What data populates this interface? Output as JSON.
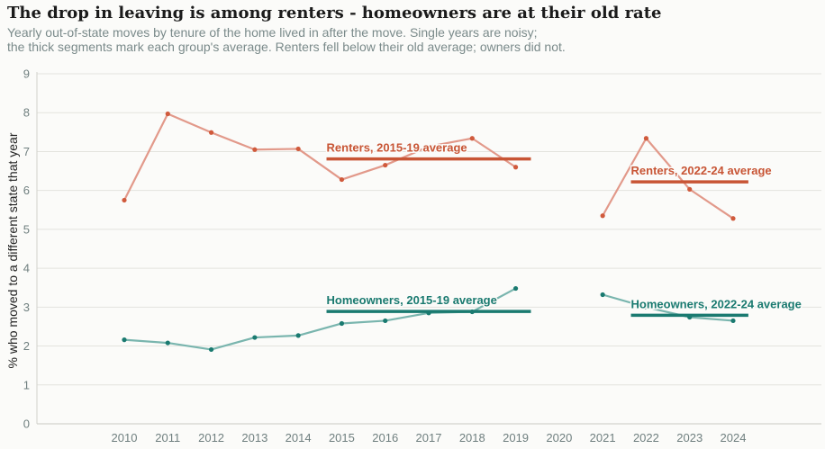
{
  "chart_data": {
    "type": "line",
    "title": "The drop in leaving is among renters - homeowners are at their old rate",
    "subtitle_lines": [
      "Yearly out-of-state moves by tenure of the home lived in after the move. Single years are noisy;",
      "the thick segments mark each group's average. Renters fell below their old average; owners did not."
    ],
    "xlabel": "",
    "ylabel": "% who moved to a different state that year",
    "x": [
      2010,
      2011,
      2012,
      2013,
      2014,
      2015,
      2016,
      2017,
      2018,
      2019,
      2020,
      2021,
      2022,
      2023,
      2024
    ],
    "x_ticks": [
      "2010",
      "2011",
      "2012",
      "2013",
      "2014",
      "2015",
      "2016",
      "2017",
      "2018",
      "2019",
      "2020",
      "2021",
      "2022",
      "2023",
      "2024"
    ],
    "xlim": [
      2010,
      2024
    ],
    "ylim": [
      0,
      9
    ],
    "y_ticks": [
      0,
      1,
      2,
      3,
      4,
      5,
      6,
      7,
      8,
      9
    ],
    "grid": "horizontal",
    "series": [
      {
        "key": "renters",
        "color": "#e2998a",
        "point_color": "#d05a3c",
        "values": [
          5.75,
          7.97,
          7.49,
          7.05,
          7.07,
          6.28,
          6.65,
          7.13,
          7.34,
          6.6,
          null,
          5.35,
          7.34,
          6.03,
          5.28
        ]
      },
      {
        "key": "homeowners",
        "color": "#79b5ae",
        "point_color": "#1a7a70",
        "values": [
          2.16,
          2.08,
          1.91,
          2.22,
          2.27,
          2.58,
          2.65,
          2.85,
          2.88,
          3.48,
          null,
          3.32,
          3.0,
          2.74,
          2.65
        ]
      }
    ],
    "averages": [
      {
        "key": "renters-2015-19",
        "label": "Renters, 2015-19 average",
        "x0": 2014.65,
        "x1": 2019.35,
        "value": 6.81,
        "color": "#c85535"
      },
      {
        "key": "renters-2022-24",
        "label": "Renters, 2022-24 average",
        "x0": 2021.65,
        "x1": 2024.35,
        "value": 6.22,
        "color": "#c85535"
      },
      {
        "key": "homeowners-2015-19",
        "label": "Homeowners, 2015-19 average",
        "x0": 2014.65,
        "x1": 2019.35,
        "value": 2.89,
        "color": "#1a7a70"
      },
      {
        "key": "homeowners-2022-24",
        "label": "Homeowners, 2022-24 average",
        "x0": 2021.65,
        "x1": 2024.35,
        "value": 2.79,
        "color": "#1a7a70"
      }
    ]
  }
}
